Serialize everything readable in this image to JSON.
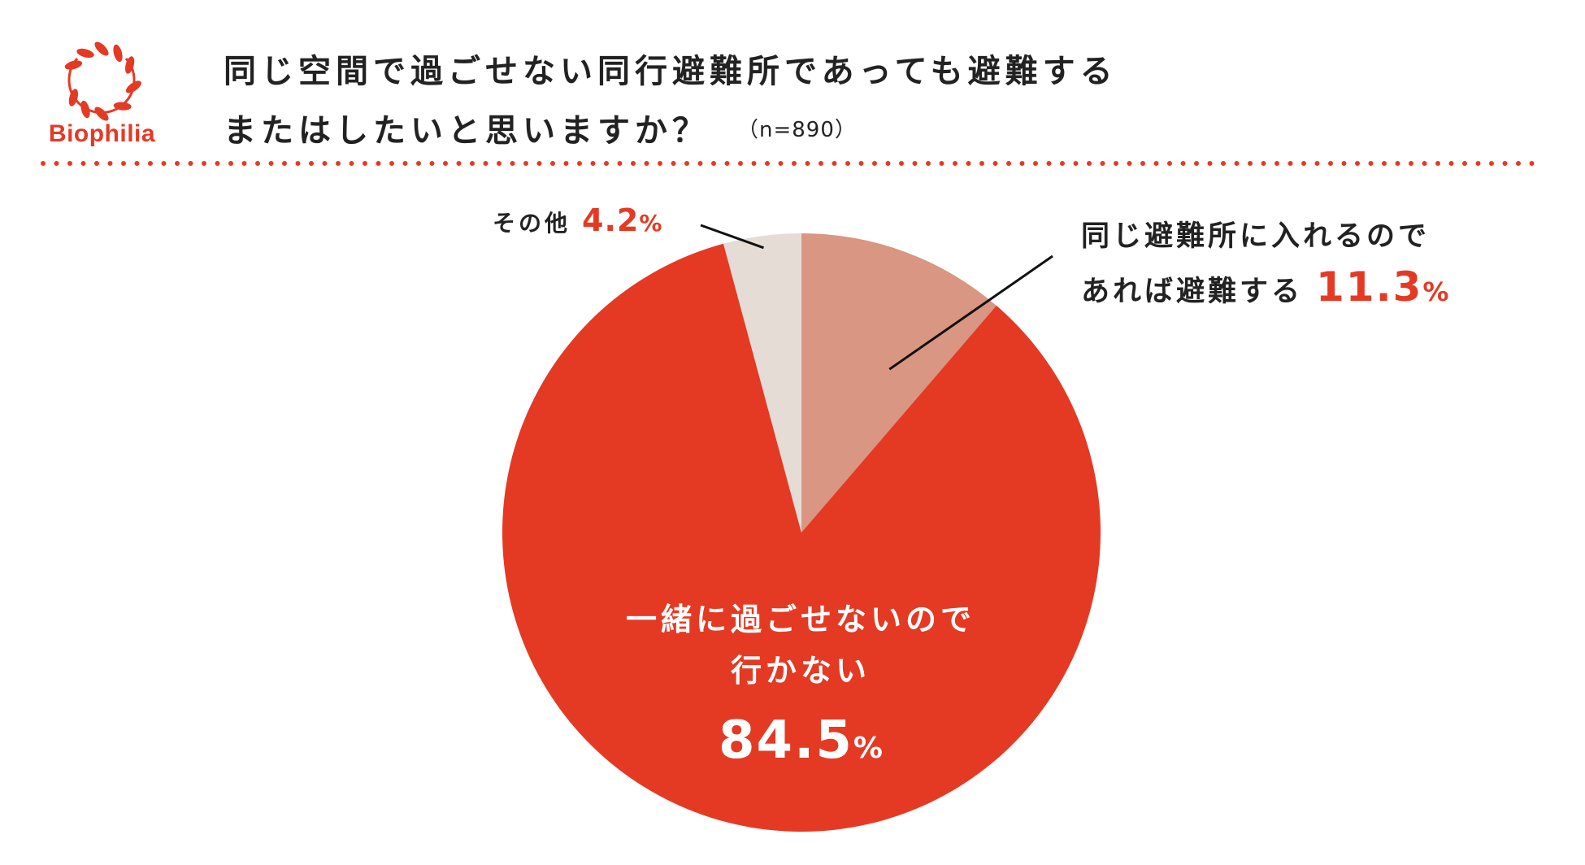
{
  "brand": {
    "logo_text": "Biophilia",
    "color": "#e43a24"
  },
  "header": {
    "title_line1": "同じ空間で過ごせない同行避難所であっても避難する",
    "title_line2": "またはしたいと思いますか？",
    "sample_size": "（n=890）"
  },
  "chart_data": {
    "type": "pie",
    "title": "同じ空間で過ごせない同行避難所であっても避難するまたはしたいと思いますか？",
    "n": 890,
    "start_angle_deg": 0,
    "direction": "clockwise",
    "slices": [
      {
        "label_lines": [
          "同じ避難所に入れるので",
          "あれば避難する"
        ],
        "value": 11.3,
        "value_text": "11.3",
        "unit": "%",
        "color": "#d99682"
      },
      {
        "label_lines": [
          "一緒に過ごせないので",
          "行かない"
        ],
        "value": 84.5,
        "value_text": "84.5",
        "unit": "%",
        "color": "#e43a24"
      },
      {
        "label_lines": [
          "その他"
        ],
        "value": 4.2,
        "value_text": "4.2",
        "unit": "%",
        "color": "#e5ddd5"
      }
    ]
  }
}
